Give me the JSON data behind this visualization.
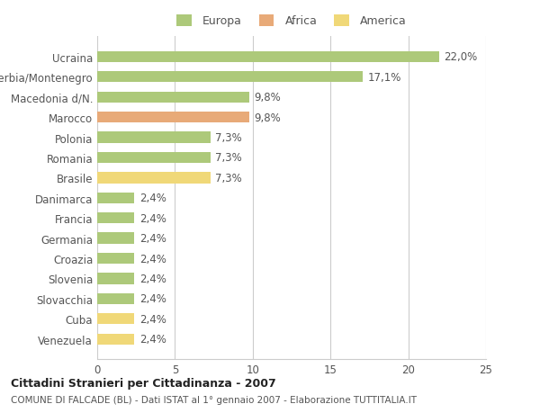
{
  "categories": [
    "Venezuela",
    "Cuba",
    "Slovacchia",
    "Slovenia",
    "Croazia",
    "Germania",
    "Francia",
    "Danimarca",
    "Brasile",
    "Romania",
    "Polonia",
    "Marocco",
    "Macedonia d/N.",
    "Serbia/Montenegro",
    "Ucraina"
  ],
  "values": [
    2.4,
    2.4,
    2.4,
    2.4,
    2.4,
    2.4,
    2.4,
    2.4,
    7.3,
    7.3,
    7.3,
    9.8,
    9.8,
    17.1,
    22.0
  ],
  "colors": [
    "#f0d878",
    "#f0d878",
    "#adc97a",
    "#adc97a",
    "#adc97a",
    "#adc97a",
    "#adc97a",
    "#adc97a",
    "#f0d878",
    "#adc97a",
    "#adc97a",
    "#e8aa78",
    "#adc97a",
    "#adc97a",
    "#adc97a"
  ],
  "labels": [
    "2,4%",
    "2,4%",
    "2,4%",
    "2,4%",
    "2,4%",
    "2,4%",
    "2,4%",
    "2,4%",
    "7,3%",
    "7,3%",
    "7,3%",
    "9,8%",
    "9,8%",
    "17,1%",
    "22,0%"
  ],
  "legend": [
    {
      "label": "Europa",
      "color": "#adc97a"
    },
    {
      "label": "Africa",
      "color": "#e8aa78"
    },
    {
      "label": "America",
      "color": "#f0d878"
    }
  ],
  "title": "Cittadini Stranieri per Cittadinanza - 2007",
  "subtitle": "COMUNE DI FALCADE (BL) - Dati ISTAT al 1° gennaio 2007 - Elaborazione TUTTITALIA.IT",
  "xlim": [
    0,
    25
  ],
  "xticks": [
    0,
    5,
    10,
    15,
    20,
    25
  ],
  "background_color": "#ffffff",
  "grid_color": "#cccccc",
  "bar_height": 0.55
}
